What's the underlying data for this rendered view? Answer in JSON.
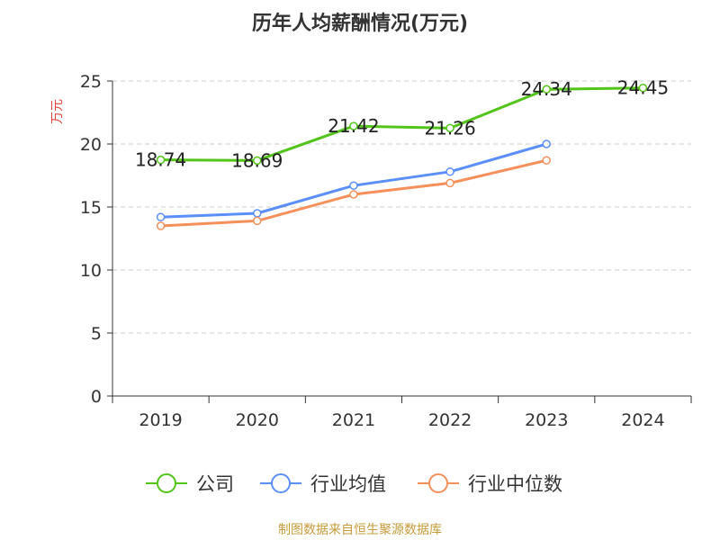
{
  "chart_data": {
    "type": "line",
    "title": "历年人均薪酬情况(万元)",
    "ylabel": "万元",
    "xlabel": "",
    "ylim": [
      0,
      25
    ],
    "yticks": [
      0,
      5,
      10,
      15,
      20,
      25
    ],
    "categories": [
      "2019",
      "2020",
      "2021",
      "2022",
      "2023",
      "2024"
    ],
    "grid": true,
    "legend_position": "bottom",
    "series": [
      {
        "name": "公司",
        "color": "#52c41a",
        "values": [
          18.74,
          18.69,
          21.42,
          21.26,
          24.34,
          24.45
        ],
        "labels": [
          "18.74",
          "18.69",
          "21.42",
          "21.26",
          "24.34",
          "24.45"
        ]
      },
      {
        "name": "行业均值",
        "color": "#5b8ff9",
        "values": [
          14.2,
          14.5,
          16.7,
          17.8,
          20.0,
          null
        ]
      },
      {
        "name": "行业中位数",
        "color": "#f6905b",
        "values": [
          13.5,
          13.9,
          16.0,
          16.9,
          18.7,
          null
        ]
      }
    ]
  },
  "footer": "制图数据来自恒生聚源数据库"
}
